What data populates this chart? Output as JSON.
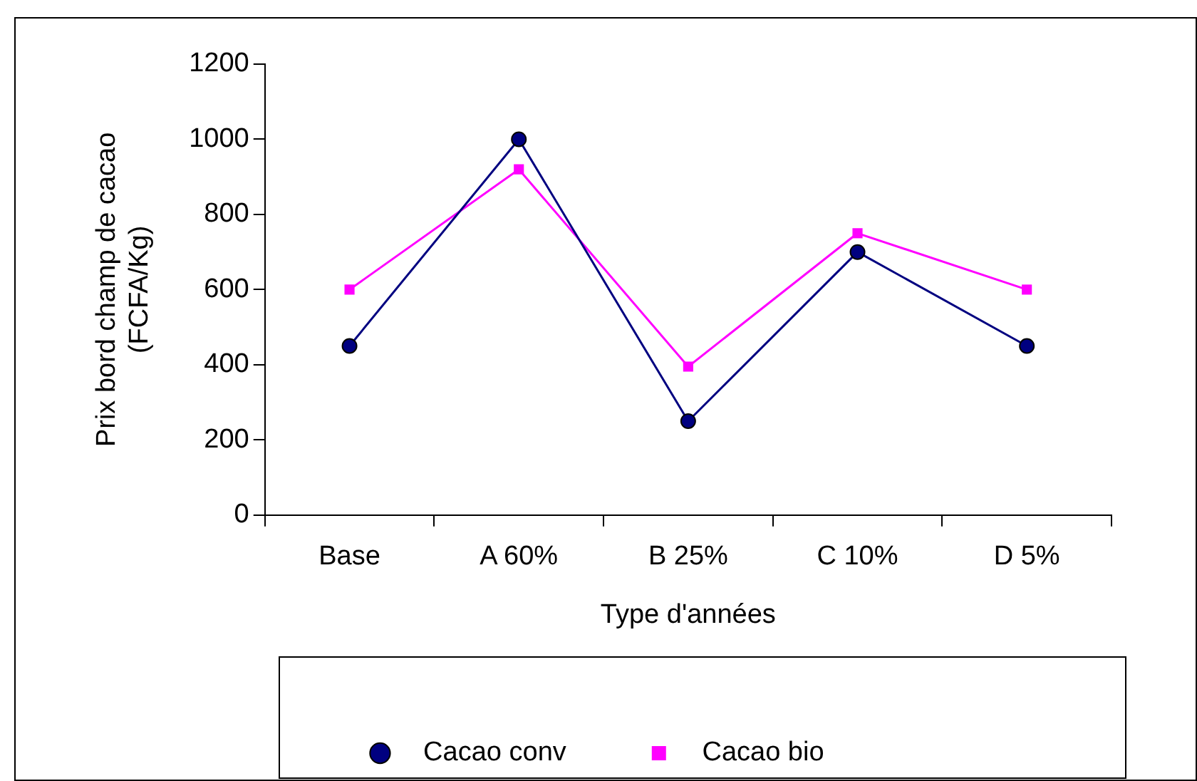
{
  "chart_data": {
    "type": "line",
    "xlabel": "Type d'années",
    "ylabel": "Prix bord champ de cacao\n(FCFA/Kg)",
    "categories": [
      "Base",
      "A 60%",
      "B 25%",
      "C 10%",
      "D 5%"
    ],
    "series": [
      {
        "name": "Cacao conv",
        "color": "#000080",
        "marker": "circle",
        "values": [
          450,
          1000,
          250,
          700,
          450
        ]
      },
      {
        "name": "Cacao bio",
        "color": "#ff00ff",
        "marker": "square",
        "values": [
          600,
          920,
          395,
          750,
          600
        ]
      }
    ],
    "ylim": [
      0,
      1200
    ],
    "yticks": [
      0,
      200,
      400,
      600,
      800,
      1000,
      1200
    ],
    "grid": false,
    "legend": "bottom",
    "line_style": "solid"
  }
}
